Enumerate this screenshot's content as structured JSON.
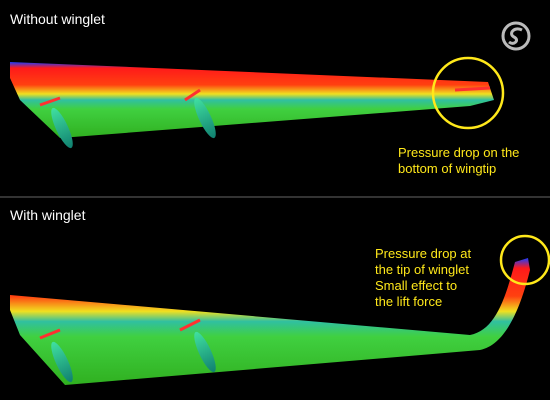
{
  "panels": [
    {
      "title": "Without winglet",
      "annotation": [
        "Pressure drop on the",
        "bottom of wingtip"
      ]
    },
    {
      "title": "With winglet",
      "annotation": [
        "Pressure drop at",
        "the tip of winglet",
        "Small effect to",
        "the lift force"
      ]
    }
  ]
}
